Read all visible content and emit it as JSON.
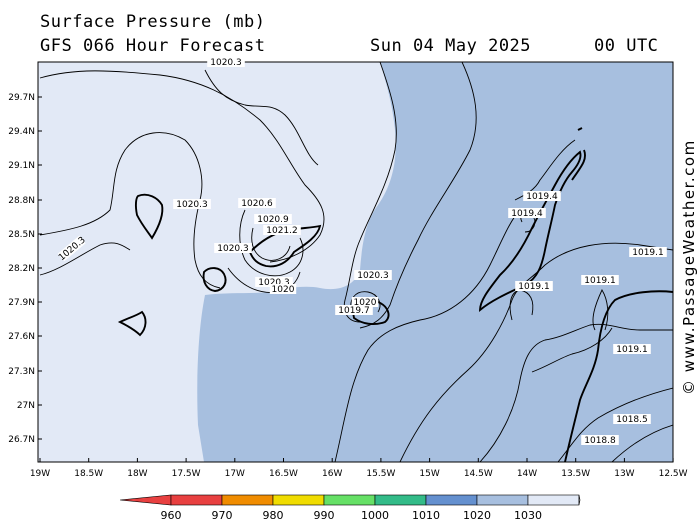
{
  "header": {
    "title": "Surface Pressure (mb)",
    "subtitle": "GFS 066 Hour Forecast",
    "date": "Sun 04 May 2025",
    "time": "00 UTC"
  },
  "map": {
    "lat_labels": [
      "29.7N",
      "29.4N",
      "29.1N",
      "28.8N",
      "28.5N",
      "28.2N",
      "27.9N",
      "27.6N",
      "27.3N",
      "27N",
      "26.7N"
    ],
    "lon_labels": [
      "19W",
      "18.5W",
      "18W",
      "17.5W",
      "17W",
      "16.5W",
      "16W",
      "15.5W",
      "15W",
      "14.5W",
      "14W",
      "13.5W",
      "13W",
      "12.5W"
    ],
    "isobar_labels": [
      "1020.3",
      "1020.3",
      "1020.6",
      "1020.9",
      "1021.2",
      "1020.3",
      "1020.3",
      "1020",
      "1020.3",
      "1020",
      "1019.7",
      "1020.3",
      "1019.4",
      "1019.4",
      "1019.1",
      "1019.1",
      "1019.1",
      "1019.1",
      "1018.8",
      "1018.5",
      "1020.3"
    ],
    "fill_colors": {
      "band_1010_1020": "#a7bfdf",
      "band_1020_1030": "#e2e9f6",
      "land": "#000000"
    }
  },
  "colorbar": {
    "ticks": [
      "960",
      "970",
      "980",
      "990",
      "1000",
      "1010",
      "1020",
      "1030"
    ],
    "colors": [
      "#e84040",
      "#f08c00",
      "#f0dc00",
      "#66e066",
      "#33bb88",
      "#6490cf",
      "#a7bfdf",
      "#e2e9f6"
    ]
  },
  "watermark": "© www.PassageWeather.com"
}
